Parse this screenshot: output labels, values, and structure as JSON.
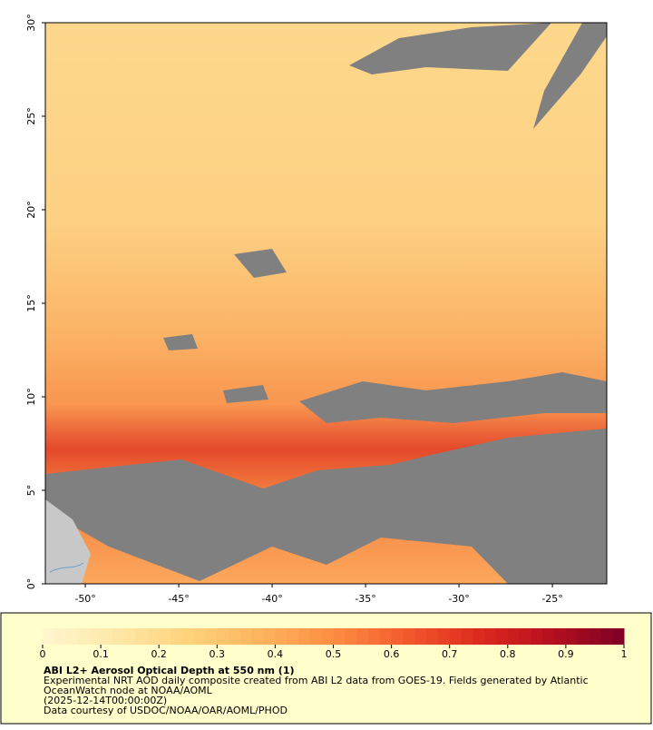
{
  "map": {
    "lonlim": [
      -52.14,
      -22.09
    ],
    "latlim": [
      0,
      30
    ],
    "lat_ticks": [
      {
        "value": 30,
        "label": "30°"
      },
      {
        "value": 25,
        "label": "25°"
      },
      {
        "value": 20,
        "label": "20°"
      },
      {
        "value": 15,
        "label": "15°"
      },
      {
        "value": 10,
        "label": "10°"
      },
      {
        "value": 5,
        "label": "5°"
      },
      {
        "value": 0,
        "label": "0°"
      }
    ],
    "lon_ticks": [
      {
        "value": -50,
        "label": "-50°"
      },
      {
        "value": -45,
        "label": "-45°"
      },
      {
        "value": -40,
        "label": "-40°"
      },
      {
        "value": -35,
        "label": "-35°"
      },
      {
        "value": -30,
        "label": "-30°"
      },
      {
        "value": -25,
        "label": "-25°"
      }
    ]
  },
  "colorbar": {
    "lim": [
      0,
      1
    ],
    "ticks": [
      0,
      0.1,
      0.2,
      0.3,
      0.4,
      0.5,
      0.6,
      0.7,
      0.8,
      0.9,
      1
    ],
    "colormap": [
      "#fff7d0",
      "#fee8a8",
      "#fed37c",
      "#fdb45c",
      "#fc8e42",
      "#f45a2e",
      "#dc2a1e",
      "#b50f1f",
      "#7f0024"
    ]
  },
  "caption": {
    "title": "ABI L2+ Aerosol Optical Depth at 550 nm (1)",
    "lines": [
      "Experimental NRT AOD daily composite created from ABI L2 data from GOES-19. Fields generated by Atlantic",
      "OceanWatch node at NOAA/AOML",
      "(2025-12-14T00:00:00Z)",
      "Data courtesy of USDOC/NOAA/OAR/AOML/PHOD"
    ]
  }
}
